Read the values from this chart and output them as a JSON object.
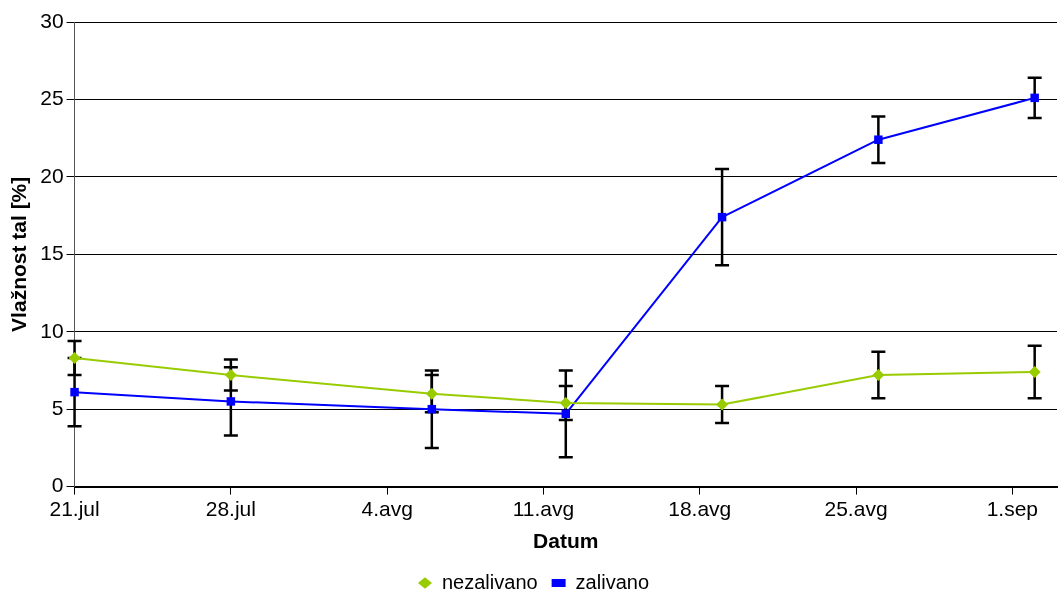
{
  "chart_data": {
    "type": "line",
    "xlabel": "Datum",
    "ylabel": "Vlažnost tal [%]",
    "x": [
      "--07-21",
      "--07-28",
      "--08-06",
      "--08-12",
      "--08-19",
      "--08-26",
      "--09-02"
    ],
    "series": [
      {
        "name": "nezalivano",
        "color": "#99cc00",
        "marker": "diamond",
        "values": [
          8.3,
          7.2,
          6.0,
          5.4,
          5.3,
          7.2,
          7.4
        ],
        "errors": [
          1.1,
          1.0,
          1.2,
          1.1,
          1.2,
          1.5,
          1.7
        ]
      },
      {
        "name": "zalivano",
        "color": "#0000ff",
        "marker": "square",
        "values": [
          6.1,
          5.5,
          5.0,
          4.7,
          17.4,
          22.4,
          25.1
        ],
        "errors": [
          2.2,
          2.2,
          2.5,
          2.8,
          3.1,
          1.5,
          1.3
        ]
      }
    ],
    "xlim": [
      "--07-21",
      "--09-03"
    ],
    "xticks": [
      {
        "value": "--07-21",
        "label": "21.jul"
      },
      {
        "value": "--07-28",
        "label": "28.jul"
      },
      {
        "value": "--08-04",
        "label": "4.avg"
      },
      {
        "value": "--08-11",
        "label": "11.avg"
      },
      {
        "value": "--08-18",
        "label": "18.avg"
      },
      {
        "value": "--08-25",
        "label": "25.avg"
      },
      {
        "value": "--09-01",
        "label": "1.sep"
      }
    ],
    "ylim": [
      0,
      30
    ],
    "yticks": [
      0,
      5,
      10,
      15,
      20,
      25,
      30
    ],
    "grid": "y",
    "legend": "bottom",
    "line_style": "solid"
  }
}
